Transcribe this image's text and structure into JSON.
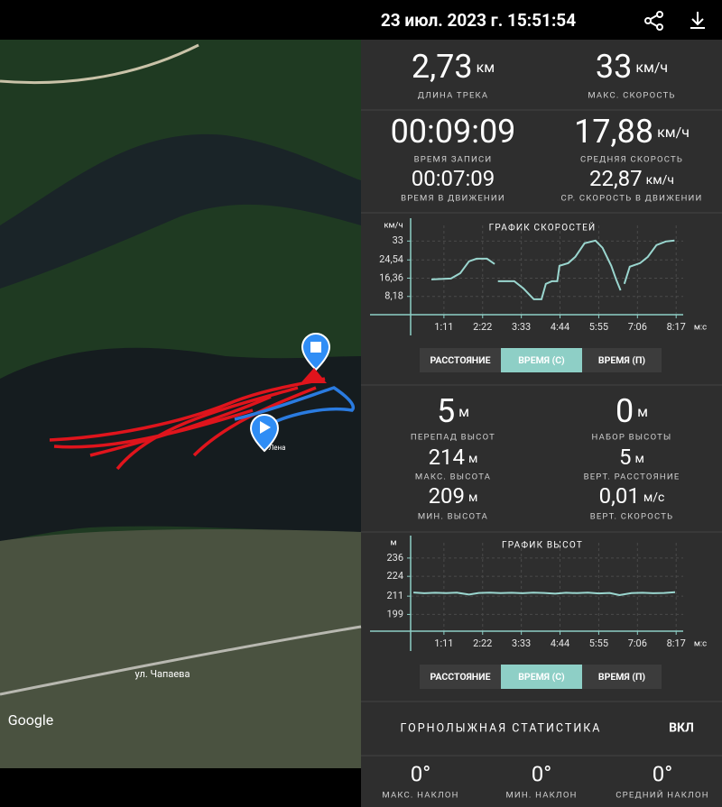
{
  "header": {
    "title": "23 июл. 2023 г. 15:51:54"
  },
  "map": {
    "place_label": "Лена",
    "street_label": "ул. Чапаева",
    "logo": "Google"
  },
  "stats": [
    {
      "value": "2,73",
      "unit": "км",
      "label": "ДЛИНА ТРЕКА"
    },
    {
      "value": "33",
      "unit": "км/ч",
      "label": "МАКС. СКОРОСТЬ"
    },
    {
      "value": "00:09:09",
      "label": "ВРЕМЯ ЗАПИСИ"
    },
    {
      "value": "17,88",
      "unit": "км/ч",
      "label": "СРЕДНЯЯ СКОРОСТЬ"
    },
    {
      "value": "00:07:09",
      "label": "ВРЕМЯ В ДВИЖЕНИИ"
    },
    {
      "value": "22,87",
      "unit": "км/ч",
      "label": "СР. СКОРОСТЬ В ДВИЖЕНИИ"
    }
  ],
  "altitude_stats": [
    {
      "value": "5",
      "unit": "м",
      "label": "ПЕРЕПАД ВЫСОТ"
    },
    {
      "value": "0",
      "unit": "м",
      "label": "НАБОР ВЫСОТЫ"
    },
    {
      "value": "214",
      "unit": "м",
      "label": "МАКС. ВЫСОТА"
    },
    {
      "value": "5",
      "unit": "м",
      "label": "ВЕРТ. РАССТОЯНИЕ"
    },
    {
      "value": "209",
      "unit": "м",
      "label": "МИН. ВЫСОТА"
    },
    {
      "value": "0,01",
      "unit": "м/с",
      "label": "ВЕРТ. СКОРОСТЬ"
    }
  ],
  "toggles": [
    {
      "options": [
        "РАССТОЯНИЕ",
        "ВРЕМЯ (С)",
        "ВРЕМЯ (П)"
      ],
      "selected": 1
    },
    {
      "options": [
        "РАССТОЯНИЕ",
        "ВРЕМЯ (С)",
        "ВРЕМЯ (П)"
      ],
      "selected": 1
    }
  ],
  "ski": {
    "title": "ГОРНОЛЫЖНАЯ СТАТИСТИКА",
    "state": "ВКЛ",
    "stats": [
      {
        "value": "0°",
        "label": "МАКС. НАКЛОН"
      },
      {
        "value": "0°",
        "label": "МИН. НАКЛОН"
      },
      {
        "value": "0°",
        "label": "СРЕДНИЙ НАКЛОН"
      }
    ]
  },
  "chart_data": [
    {
      "type": "line",
      "title": "ГРАФИК СКОРОСТЕЙ",
      "y_unit": "км/ч",
      "x_unit": "м:с",
      "color": "#9ad6cf",
      "grid": true,
      "x": [
        48,
        84,
        101,
        117,
        131,
        150,
        164,
        167,
        170,
        200,
        217,
        236,
        250,
        258,
        269,
        279,
        283,
        299,
        312,
        329,
        349,
        362,
        378,
        387,
        395,
        398,
        402,
        412,
        431,
        445,
        461,
        478,
        494
      ],
      "values": [
        15.8,
        16.2,
        18.6,
        23.9,
        25.1,
        25.1,
        22.7,
        null,
        15,
        15,
        11.7,
        6.9,
        6.9,
        13.8,
        15,
        15,
        21.9,
        23.1,
        25.9,
        32,
        33.2,
        30,
        21.9,
        15.8,
        10.9,
        null,
        13.8,
        21.5,
        23.1,
        25.9,
        31.2,
        32.8,
        33.2
      ],
      "xlim": [
        0,
        500
      ],
      "ylim": [
        0,
        40
      ],
      "xticks": [
        {
          "value": 71,
          "label": "1:11"
        },
        {
          "value": 142,
          "label": "2:22"
        },
        {
          "value": 213,
          "label": "3:33"
        },
        {
          "value": 284,
          "label": "4:44"
        },
        {
          "value": 355,
          "label": "5:55"
        },
        {
          "value": 426,
          "label": "7:06"
        },
        {
          "value": 497,
          "label": "8:17"
        }
      ],
      "yticks": [
        {
          "value": 8.18,
          "label": "8,18"
        },
        {
          "value": 16.36,
          "label": "16,36"
        },
        {
          "value": 24.54,
          "label": "24,54"
        },
        33
      ]
    },
    {
      "type": "line",
      "title": "ГРАФИК ВЫСОТ",
      "y_unit": "м",
      "x_unit": "м:с",
      "color": "#9ad6cf",
      "grid": true,
      "x": [
        15,
        35,
        55,
        75,
        95,
        117,
        135,
        155,
        175,
        195,
        215,
        235,
        255,
        275,
        295,
        315,
        335,
        355,
        375,
        393,
        415,
        435,
        455,
        475,
        495
      ],
      "values": [
        213.4,
        212.9,
        213.2,
        213.0,
        213.3,
        212.0,
        213.1,
        213.3,
        213.0,
        213.2,
        212.9,
        213.3,
        213.1,
        212.6,
        213.2,
        213.0,
        213.3,
        212.8,
        213.1,
        211.7,
        213.0,
        213.2,
        212.9,
        213.1,
        213.6
      ],
      "xlim": [
        0,
        500
      ],
      "ylim": [
        188,
        246
      ],
      "xticks": [
        {
          "value": 71,
          "label": "1:11"
        },
        {
          "value": 142,
          "label": "2:22"
        },
        {
          "value": 213,
          "label": "3:33"
        },
        {
          "value": 284,
          "label": "4:44"
        },
        {
          "value": 355,
          "label": "5:55"
        },
        {
          "value": 426,
          "label": "7:06"
        },
        {
          "value": 497,
          "label": "8:17"
        }
      ],
      "yticks": [
        199,
        211,
        224,
        236
      ]
    }
  ]
}
